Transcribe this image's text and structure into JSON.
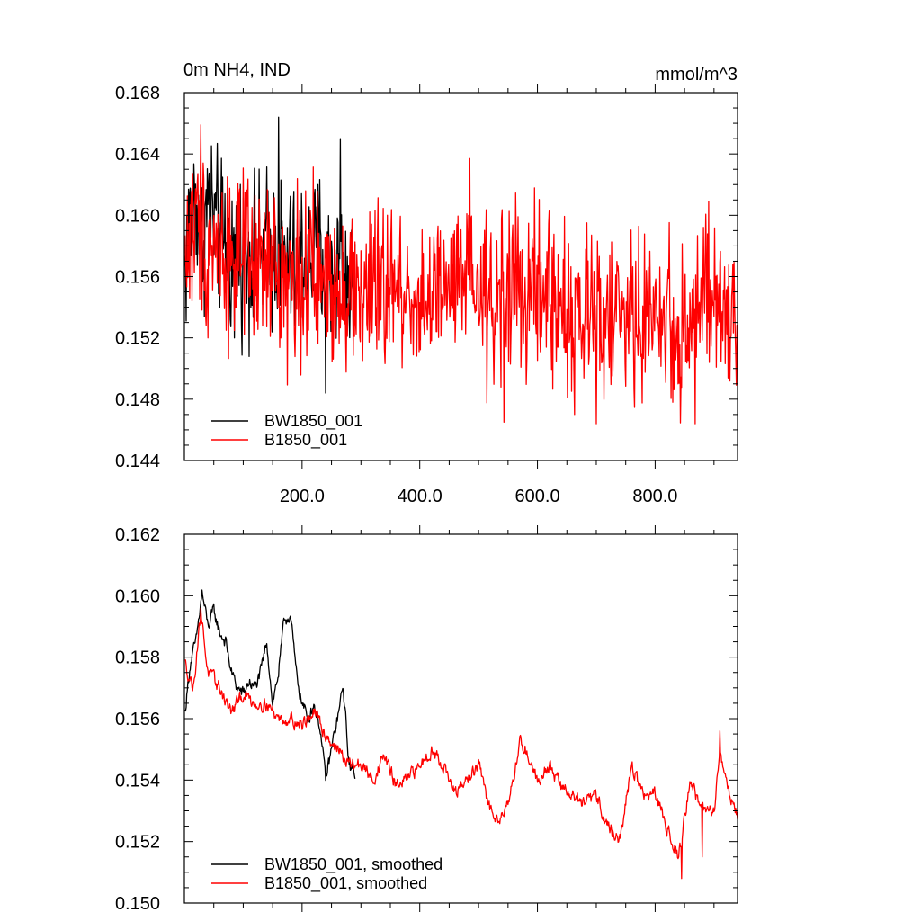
{
  "chart_data": [
    {
      "type": "line",
      "title_left": "0m NH4, IND",
      "title_right": "mmol/m^3",
      "xlim": [
        0,
        940
      ],
      "ylim": [
        0.144,
        0.168
      ],
      "y_ticks": [
        0.144,
        0.148,
        0.152,
        0.156,
        0.16,
        0.164,
        0.168
      ],
      "y_tick_labels": [
        "0.144",
        "0.148",
        "0.152",
        "0.156",
        "0.160",
        "0.164",
        "0.168"
      ],
      "x_ticks": [
        200,
        400,
        600,
        800
      ],
      "x_tick_labels": [
        "200.0",
        "400.0",
        "600.0",
        "800.0"
      ],
      "grid": false,
      "legend_position": "bottom-left",
      "series": [
        {
          "name": "BW1850_001",
          "color": "#000000",
          "x_start": 1,
          "x_end": 290,
          "points": [
            [
              1,
              0.1565
            ],
            [
              10,
              0.1598
            ],
            [
              20,
              0.1612
            ],
            [
              30,
              0.1583
            ],
            [
              40,
              0.1608
            ],
            [
              50,
              0.1598
            ],
            [
              60,
              0.1585
            ],
            [
              70,
              0.158
            ],
            [
              80,
              0.1572
            ],
            [
              90,
              0.1578
            ],
            [
              100,
              0.1575
            ],
            [
              110,
              0.1576
            ],
            [
              120,
              0.1568
            ],
            [
              130,
              0.1572
            ],
            [
              140,
              0.158
            ],
            [
              150,
              0.1574
            ],
            [
              160,
              0.1582
            ],
            [
              170,
              0.1565
            ],
            [
              180,
              0.157
            ],
            [
              190,
              0.156
            ],
            [
              200,
              0.1575
            ],
            [
              210,
              0.1568
            ],
            [
              220,
              0.1572
            ],
            [
              230,
              0.1578
            ],
            [
              240,
              0.1565
            ],
            [
              250,
              0.156
            ],
            [
              260,
              0.1572
            ],
            [
              270,
              0.1566
            ],
            [
              280,
              0.1555
            ],
            [
              290,
              0.1548
            ]
          ],
          "amplitude": 0.0028,
          "extremes": [
            [
              160,
              0.1664
            ],
            [
              265,
              0.165
            ],
            [
              240,
              0.1484
            ],
            [
              85,
              0.152
            ]
          ]
        },
        {
          "name": "B1850_001",
          "color": "#ff0000",
          "x_start": 1,
          "x_end": 940,
          "points": [
            [
              1,
              0.1575
            ],
            [
              20,
              0.1595
            ],
            [
              40,
              0.1585
            ],
            [
              60,
              0.158
            ],
            [
              80,
              0.1575
            ],
            [
              100,
              0.1568
            ],
            [
              120,
              0.1565
            ],
            [
              140,
              0.1565
            ],
            [
              160,
              0.1562
            ],
            [
              180,
              0.1558
            ],
            [
              200,
              0.1558
            ],
            [
              220,
              0.156
            ],
            [
              240,
              0.1556
            ],
            [
              260,
              0.1558
            ],
            [
              280,
              0.155
            ],
            [
              300,
              0.155
            ],
            [
              320,
              0.1548
            ],
            [
              340,
              0.1555
            ],
            [
              360,
              0.155
            ],
            [
              380,
              0.1548
            ],
            [
              400,
              0.1545
            ],
            [
              420,
              0.1545
            ],
            [
              440,
              0.1548
            ],
            [
              460,
              0.1552
            ],
            [
              480,
              0.1555
            ],
            [
              500,
              0.1548
            ],
            [
              520,
              0.154
            ],
            [
              540,
              0.155
            ],
            [
              560,
              0.1555
            ],
            [
              580,
              0.1545
            ],
            [
              600,
              0.155
            ],
            [
              620,
              0.1548
            ],
            [
              640,
              0.154
            ],
            [
              660,
              0.1535
            ],
            [
              680,
              0.153
            ],
            [
              700,
              0.154
            ],
            [
              720,
              0.1538
            ],
            [
              740,
              0.153
            ],
            [
              760,
              0.1535
            ],
            [
              780,
              0.153
            ],
            [
              800,
              0.154
            ],
            [
              820,
              0.153
            ],
            [
              840,
              0.152
            ],
            [
              860,
              0.1535
            ],
            [
              880,
              0.1545
            ],
            [
              900,
              0.154
            ],
            [
              920,
              0.1532
            ],
            [
              940,
              0.1528
            ]
          ],
          "amplitude": 0.003,
          "extremes": [
            [
              28,
              0.1659
            ],
            [
              485,
              0.1637
            ],
            [
              543,
              0.1465
            ],
            [
              700,
              0.1464
            ],
            [
              868,
              0.1464
            ],
            [
              40,
              0.152
            ]
          ]
        }
      ]
    },
    {
      "type": "line",
      "xlim": [
        0,
        940
      ],
      "ylim": [
        0.15,
        0.162
      ],
      "y_ticks": [
        0.15,
        0.152,
        0.154,
        0.156,
        0.158,
        0.16,
        0.162
      ],
      "y_tick_labels": [
        "0.150",
        "0.152",
        "0.154",
        "0.156",
        "0.158",
        "0.160",
        "0.162"
      ],
      "x_ticks": [
        200,
        400,
        600,
        800
      ],
      "grid": false,
      "legend_position": "bottom-left",
      "series": [
        {
          "name": "BW1850_001, smoothed",
          "color": "#000000",
          "x_start": 1,
          "x_end": 290,
          "points": [
            [
              1,
              0.1562
            ],
            [
              10,
              0.1578
            ],
            [
              20,
              0.1585
            ],
            [
              30,
              0.1601
            ],
            [
              40,
              0.159
            ],
            [
              50,
              0.1595
            ],
            [
              60,
              0.1588
            ],
            [
              70,
              0.1585
            ],
            [
              80,
              0.1575
            ],
            [
              90,
              0.157
            ],
            [
              100,
              0.1568
            ],
            [
              110,
              0.1572
            ],
            [
              120,
              0.157
            ],
            [
              130,
              0.1575
            ],
            [
              140,
              0.1585
            ],
            [
              150,
              0.1565
            ],
            [
              160,
              0.1575
            ],
            [
              170,
              0.1592
            ],
            [
              180,
              0.1594
            ],
            [
              190,
              0.1575
            ],
            [
              200,
              0.1565
            ],
            [
              210,
              0.156
            ],
            [
              220,
              0.1565
            ],
            [
              230,
              0.1558
            ],
            [
              240,
              0.154
            ],
            [
              250,
              0.155
            ],
            [
              260,
              0.156
            ],
            [
              270,
              0.157
            ],
            [
              280,
              0.1545
            ],
            [
              290,
              0.1542
            ]
          ],
          "amplitude": 0.0004,
          "extremes": []
        },
        {
          "name": "B1850_001, smoothed",
          "color": "#ff0000",
          "x_start": 1,
          "x_end": 940,
          "points": [
            [
              1,
              0.1578
            ],
            [
              15,
              0.157
            ],
            [
              28,
              0.1595
            ],
            [
              40,
              0.1575
            ],
            [
              60,
              0.157
            ],
            [
              80,
              0.1562
            ],
            [
              100,
              0.1568
            ],
            [
              120,
              0.1565
            ],
            [
              140,
              0.1565
            ],
            [
              160,
              0.156
            ],
            [
              180,
              0.156
            ],
            [
              200,
              0.1558
            ],
            [
              220,
              0.1562
            ],
            [
              240,
              0.1555
            ],
            [
              260,
              0.155
            ],
            [
              280,
              0.1545
            ],
            [
              300,
              0.1545
            ],
            [
              320,
              0.154
            ],
            [
              340,
              0.1548
            ],
            [
              360,
              0.1538
            ],
            [
              380,
              0.154
            ],
            [
              400,
              0.1545
            ],
            [
              420,
              0.155
            ],
            [
              440,
              0.1545
            ],
            [
              460,
              0.1535
            ],
            [
              480,
              0.154
            ],
            [
              500,
              0.1545
            ],
            [
              520,
              0.153
            ],
            [
              540,
              0.1528
            ],
            [
              560,
              0.154
            ],
            [
              570,
              0.1553
            ],
            [
              580,
              0.155
            ],
            [
              600,
              0.154
            ],
            [
              620,
              0.1545
            ],
            [
              640,
              0.1538
            ],
            [
              660,
              0.1535
            ],
            [
              680,
              0.1532
            ],
            [
              700,
              0.1535
            ],
            [
              720,
              0.1525
            ],
            [
              740,
              0.152
            ],
            [
              760,
              0.1545
            ],
            [
              780,
              0.1535
            ],
            [
              800,
              0.1535
            ],
            [
              820,
              0.1525
            ],
            [
              840,
              0.1515
            ],
            [
              860,
              0.154
            ],
            [
              880,
              0.153
            ],
            [
              900,
              0.153
            ],
            [
              910,
              0.155
            ],
            [
              920,
              0.154
            ],
            [
              940,
              0.1528
            ]
          ],
          "amplitude": 0.0004,
          "extremes": [
            [
              28,
              0.1596
            ],
            [
              845,
              0.1508
            ],
            [
              880,
              0.1515
            ],
            [
              910,
              0.1556
            ]
          ]
        }
      ]
    }
  ]
}
